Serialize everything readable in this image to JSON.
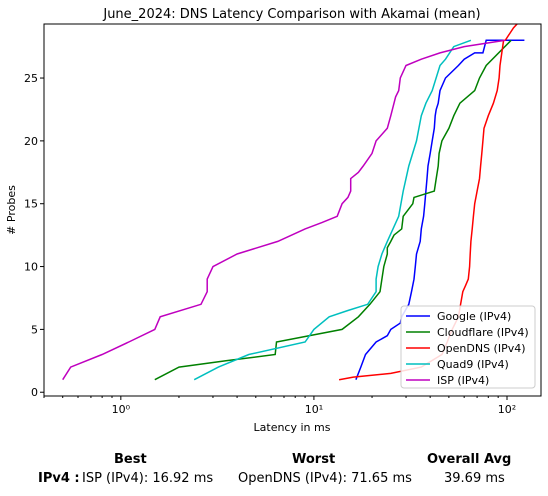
{
  "chart_data": {
    "type": "line",
    "title": "June_2024: DNS Latency Comparison with Akamai (mean)",
    "xlabel": "Latency in ms",
    "ylabel": "# Probes",
    "xscale": "log",
    "xlim": [
      0.4,
      150
    ],
    "ylim": [
      -0.3,
      29.3
    ],
    "xticks": [
      1,
      10,
      100
    ],
    "xtick_labels": [
      "10⁰",
      "10¹",
      "10²"
    ],
    "yticks": [
      0,
      5,
      10,
      15,
      20,
      25
    ],
    "grid": false,
    "legend_position": "lower-right",
    "series": [
      {
        "name": "Google (IPv4)",
        "color": "#0000ff",
        "x": [
          16.5,
          17.5,
          18.5,
          21,
          24,
          25,
          28,
          28.5,
          31,
          32,
          33,
          33.5,
          34,
          35.5,
          36,
          37,
          37.5,
          38,
          38.5,
          39,
          40,
          41,
          42,
          42.5,
          43,
          44,
          45,
          48,
          56,
          60,
          68,
          75,
          78,
          123
        ],
        "y": [
          1,
          2,
          3,
          4,
          4.5,
          5,
          5.5,
          6,
          7,
          8,
          9,
          10,
          11,
          12,
          13,
          14,
          15,
          16,
          17,
          18,
          19,
          20,
          21,
          22,
          22.5,
          23,
          24,
          25,
          26,
          26.5,
          27,
          27,
          28,
          28
        ]
      },
      {
        "name": "Cloudflare (IPv4)",
        "color": "#008000",
        "x": [
          1.5,
          2,
          3.5,
          6.3,
          6.4,
          14,
          17,
          19.5,
          22,
          22.5,
          23,
          24,
          24,
          25,
          26,
          28.5,
          29,
          32.5,
          33,
          42,
          43,
          44,
          44.5,
          46,
          50,
          53,
          57,
          68,
          72,
          78,
          105
        ],
        "y": [
          1,
          2,
          2.5,
          3,
          4,
          5,
          6,
          7,
          8,
          9,
          10,
          11,
          11.5,
          12,
          12.5,
          13,
          14,
          15,
          15.5,
          16,
          17,
          18,
          19,
          20,
          21,
          22,
          23,
          24,
          25,
          26,
          28
        ]
      },
      {
        "name": "OpenDNS (IPv4)",
        "color": "#ff0000",
        "x": [
          13.5,
          16,
          25,
          36,
          46,
          49,
          52,
          56,
          57.5,
          59,
          61,
          63,
          64,
          64.5,
          65,
          66,
          67,
          68,
          70,
          72,
          73,
          74,
          75,
          76,
          80,
          85,
          89,
          91,
          92,
          94,
          96,
          98,
          108,
          116,
          136
        ],
        "y": [
          1,
          1.2,
          1.5,
          2,
          3,
          4,
          5,
          6,
          7,
          8,
          8.5,
          9,
          10,
          11,
          12,
          13,
          14,
          15,
          16,
          17,
          18,
          19,
          20,
          21,
          22,
          23,
          24,
          25,
          26,
          27,
          28,
          28,
          29,
          29.5,
          30
        ]
      },
      {
        "name": "Quad9 (IPv4)",
        "color": "#00bfbf",
        "x": [
          2.4,
          3.2,
          4.6,
          9,
          10,
          12,
          15,
          19,
          21,
          21,
          21.5,
          22.5,
          24,
          27.5,
          29,
          30,
          31,
          34,
          36,
          38,
          41,
          45,
          48,
          53,
          65
        ],
        "y": [
          1,
          2,
          3,
          4,
          5,
          6,
          6.5,
          7,
          8,
          9,
          10,
          11,
          12,
          14,
          16,
          17,
          18,
          20,
          22,
          23,
          24,
          26,
          26.5,
          27.5,
          28
        ]
      },
      {
        "name": "ISP (IPv4)",
        "color": "#bf00bf",
        "x": [
          0.5,
          0.55,
          0.8,
          1.1,
          1.5,
          1.6,
          2.6,
          2.8,
          2.8,
          3,
          4,
          6.5,
          9,
          11,
          13.2,
          14,
          15,
          15.5,
          15.5,
          17,
          18,
          20,
          21,
          24,
          25,
          26,
          26.5,
          27.5,
          28,
          30,
          36,
          45,
          60,
          98
        ],
        "y": [
          1,
          2,
          3,
          4,
          5,
          6,
          7,
          8,
          9,
          10,
          11,
          12,
          13,
          13.5,
          14,
          15,
          15.5,
          16,
          17,
          17.5,
          18,
          19,
          20,
          21,
          22,
          23,
          23.5,
          24,
          25,
          26,
          26.5,
          27,
          27.5,
          28
        ]
      }
    ]
  },
  "summary": {
    "best_label": "Best",
    "worst_label": "Worst",
    "avg_label": "Overall Avg",
    "row_label": "IPv4 :",
    "best_value": "ISP (IPv4): 16.92 ms",
    "worst_value": "OpenDNS (IPv4): 71.65 ms",
    "avg_value": "39.69 ms"
  }
}
